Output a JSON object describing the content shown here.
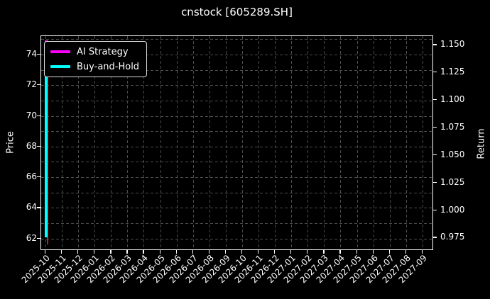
{
  "title": "cnstock [605289.SH]",
  "legend": {
    "items": [
      {
        "label": "AI Strategy",
        "color": "#ff00ff"
      },
      {
        "label": "Buy-and-Hold",
        "color": "#00ffff"
      }
    ]
  },
  "colors": {
    "background": "#000000",
    "text": "#ffffff",
    "grid": "#4d4d4d",
    "spine": "#ffffff"
  },
  "chart_data": {
    "type": "line",
    "title": "cnstock [605289.SH]",
    "grid": true,
    "legend_position": "upper left",
    "x_axis": {
      "tick_labels": [
        "2025-10",
        "2025-11",
        "2025-12",
        "2026-01",
        "2026-02",
        "2026-03",
        "2026-04",
        "2026-05",
        "2026-06",
        "2026-07",
        "2026-08",
        "2026-09",
        "2026-10",
        "2026-11",
        "2026-12",
        "2027-01",
        "2027-02",
        "2027-03",
        "2027-04",
        "2027-05",
        "2027-06",
        "2027-07",
        "2027-08",
        "2027-09"
      ]
    },
    "left_axis": {
      "label": "Price",
      "tick_labels": [
        "74",
        "72",
        "70",
        "68",
        "66",
        "64",
        "62"
      ],
      "tick_values": [
        74,
        72,
        70,
        68,
        66,
        64,
        62
      ],
      "range": [
        61.2,
        75.2
      ]
    },
    "right_axis": {
      "label": "Return",
      "tick_labels": [
        "1.150",
        "1.125",
        "1.100",
        "1.075",
        "1.050",
        "1.025",
        "1.000",
        "0.975"
      ],
      "tick_values": [
        1.15,
        1.125,
        1.1,
        1.075,
        1.05,
        1.025,
        1.0,
        0.975
      ],
      "range": [
        0.963,
        1.158
      ]
    },
    "series": [
      {
        "name": "Price",
        "color": "#b22222",
        "axis": "left",
        "x": "2025-10",
        "y_min": 61.6,
        "y_max": 74.9,
        "in_legend": false
      },
      {
        "name": "AI Strategy",
        "color": "#ff00ff",
        "axis": "right",
        "x": "2025-10",
        "y_min": 1.136,
        "y_max": 1.154,
        "in_legend": true
      },
      {
        "name": "Buy-and-Hold",
        "color": "#00ffff",
        "axis": "right",
        "x": "2025-10",
        "y_min": 0.975,
        "y_max": 1.136,
        "in_legend": true
      }
    ]
  }
}
